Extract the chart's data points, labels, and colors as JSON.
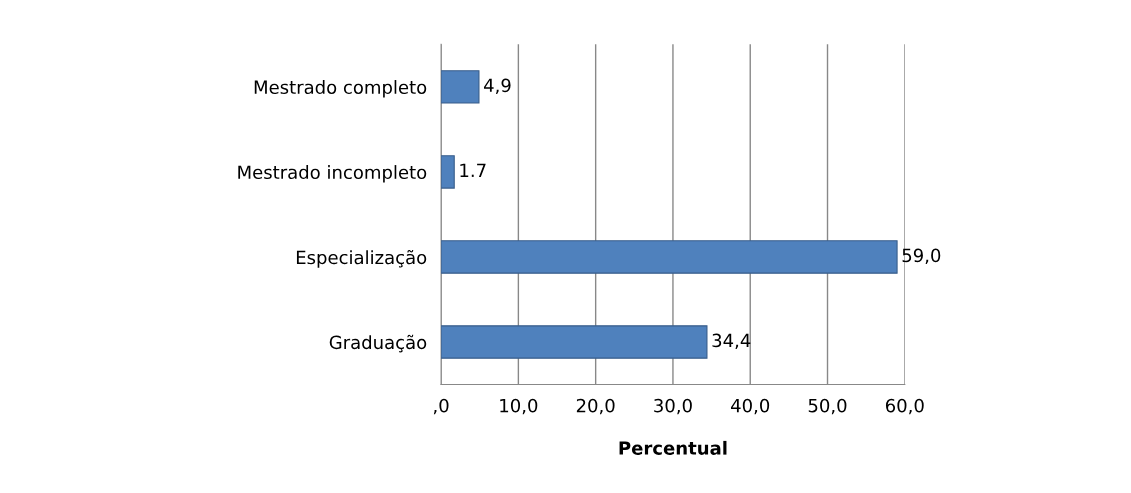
{
  "chart_data": {
    "type": "bar",
    "orientation": "horizontal",
    "xlabel": "Percentual",
    "categories": [
      "Mestrado completo",
      "Mestrado incompleto",
      "Especialização",
      "Graduação"
    ],
    "values": [
      4.9,
      1.7,
      59.0,
      34.4
    ],
    "value_labels": [
      "4,9",
      "1.7",
      "59,0",
      "34,4"
    ],
    "color": "#4f81bd",
    "xlim": [
      0,
      60
    ],
    "xticks": [
      {
        "value": 0,
        "label": ",0"
      },
      {
        "value": 10,
        "label": "10,0"
      },
      {
        "value": 20,
        "label": "20,0"
      },
      {
        "value": 30,
        "label": "30,0"
      },
      {
        "value": 40,
        "label": "40,0"
      },
      {
        "value": 50,
        "label": "50,0"
      },
      {
        "value": 60,
        "label": "60,0"
      }
    ],
    "grid": "x",
    "legend": false
  }
}
